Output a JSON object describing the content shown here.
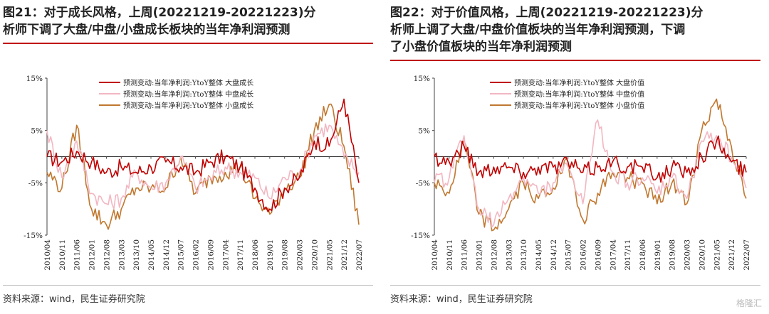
{
  "charts": [
    {
      "id": "left",
      "title_lines": [
        "图21：对于成长风格，上周(20221219-20221223)分",
        "析师下调了大盘/中盘/小盘成长板块的当年净利润预测"
      ],
      "source": "资料来源：wind，民生证券研究院"
    },
    {
      "id": "right",
      "title_lines": [
        "图22：对于价值风格，上周(20221219-20221223)分",
        "析师上调了大盘/中盘价值板块的当年净利润预测，下调",
        "了小盘价值板块的当年净利润预测"
      ],
      "source": "资料来源：wind，民生证券研究院"
    }
  ],
  "watermark": "格隆汇",
  "colors": {
    "large": "#c00000",
    "mid": "#f2b7c2",
    "small": "#c07830",
    "title_rule": "#c00000"
  },
  "chart_data": [
    {
      "type": "line",
      "x": [
        "2010/04",
        "2010/11",
        "2011/06",
        "2012/01",
        "2012/08",
        "2013/03",
        "2013/10",
        "2014/05",
        "2014/12",
        "2015/07",
        "2016/02",
        "2016/09",
        "2017/04",
        "2017/11",
        "2018/06",
        "2019/01",
        "2019/08",
        "2020/03",
        "2020/10",
        "2021/05",
        "2021/12",
        "2022/07"
      ],
      "ylim": [
        -15,
        15
      ],
      "yticks": [
        "15%",
        "5%",
        "-5%",
        "-15%"
      ],
      "ytick_values": [
        15,
        5,
        -5,
        -15
      ],
      "series": [
        {
          "name": "预测变动:当年净利润:YtoY整体 大盘成长",
          "color_key": "large",
          "values": [
            0,
            -1,
            1,
            -1,
            -3,
            -2,
            -3,
            -2,
            -1,
            -2,
            -3,
            -1,
            0,
            -2,
            -6,
            -10,
            -6,
            -4,
            3,
            2,
            11,
            -5
          ]
        },
        {
          "name": "预测变动:当年净利润:YtoY整体 中盘成长",
          "color_key": "mid",
          "values": [
            5,
            -4,
            3,
            -7,
            -9,
            -8,
            -3,
            -6,
            -5,
            0,
            -6,
            -4,
            -2,
            -3,
            -4,
            -8,
            -4,
            -3,
            4,
            6,
            0,
            -3
          ]
        },
        {
          "name": "预测变动:当年净利润:YtoY整体 小盘成长",
          "color_key": "small",
          "values": [
            -3,
            -6,
            6,
            -10,
            -13,
            -10,
            -6,
            -6,
            -6,
            0,
            -7,
            -4,
            -3,
            -2,
            -8,
            -11,
            -6,
            -4,
            5,
            10,
            2,
            -13
          ]
        }
      ]
    },
    {
      "type": "line",
      "x": [
        "2010/04",
        "2010/11",
        "2011/06",
        "2012/01",
        "2012/08",
        "2013/03",
        "2013/10",
        "2014/05",
        "2014/12",
        "2015/07",
        "2016/02",
        "2016/09",
        "2017/04",
        "2017/11",
        "2018/06",
        "2019/01",
        "2019/08",
        "2020/03",
        "2020/10",
        "2021/05",
        "2021/12",
        "2022/07"
      ],
      "ylim": [
        -15,
        15
      ],
      "yticks": [
        "15%",
        "5%",
        "-5%",
        "-15%"
      ],
      "ytick_values": [
        15,
        5,
        -5,
        -15
      ],
      "series": [
        {
          "name": "预测变动:当年净利润:YtoY整体 大盘价值",
          "color_key": "large",
          "values": [
            0,
            -1,
            2,
            -3,
            -2,
            -2,
            -3,
            -2,
            -2,
            -1,
            -3,
            -2,
            -1,
            -2,
            -2,
            -4,
            -2,
            -3,
            0,
            3,
            -1,
            -3
          ]
        },
        {
          "name": "预测变动:当年净利润:YtoY整体 中盘价值",
          "color_key": "mid",
          "values": [
            -5,
            -4,
            4,
            -10,
            -13,
            -8,
            -4,
            -7,
            -5,
            -2,
            -9,
            7,
            -3,
            -5,
            -4,
            -7,
            -4,
            -8,
            3,
            4,
            0,
            -6
          ]
        },
        {
          "name": "预测变动:当年净利润:YtoY整体 小盘价值",
          "color_key": "small",
          "values": [
            -5,
            -7,
            3,
            -11,
            -14,
            -10,
            -5,
            -8,
            -6,
            -1,
            -12,
            -7,
            -3,
            -4,
            -5,
            -9,
            -5,
            -9,
            5,
            11,
            2,
            -8
          ]
        }
      ]
    }
  ]
}
